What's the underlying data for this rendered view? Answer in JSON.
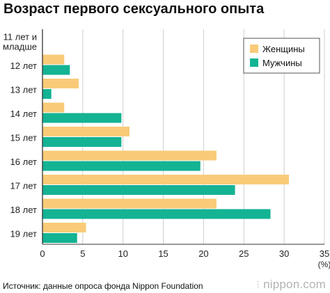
{
  "title": "Возраст первого сексуального опыта",
  "source": "Источник: данные опроса фонда Nippon Foundation",
  "brand": "nippon.com",
  "chart_data": {
    "type": "bar",
    "orientation": "horizontal",
    "title": "Возраст первого сексуального опыта",
    "categories": [
      "11 лет и младше",
      "12 лет",
      "13 лет",
      "14 лет",
      "15 лет",
      "16 лет",
      "17 лет",
      "18 лет",
      "19 лет"
    ],
    "category_lines": [
      [
        "11 лет и",
        "младше"
      ],
      [
        "12 лет"
      ],
      [
        "13 лет"
      ],
      [
        "14 лет"
      ],
      [
        "15 лет"
      ],
      [
        "16 лет"
      ],
      [
        "17 лет"
      ],
      [
        "18 лет"
      ],
      [
        "19 лет"
      ]
    ],
    "series": [
      {
        "name": "Женщины",
        "color": "#f9cb78",
        "values": [
          0,
          2.7,
          4.5,
          2.7,
          10.8,
          21.6,
          30.6,
          21.6,
          5.4
        ]
      },
      {
        "name": "Мужчины",
        "color": "#13b393",
        "values": [
          0,
          3.4,
          1.1,
          9.8,
          9.8,
          19.6,
          23.9,
          28.3,
          4.3
        ]
      }
    ],
    "xlim": [
      0,
      35
    ],
    "xticks": [
      0,
      5,
      10,
      15,
      20,
      25,
      30,
      35
    ],
    "x_unit": "(%)",
    "grid": true,
    "legend": "top-right"
  }
}
